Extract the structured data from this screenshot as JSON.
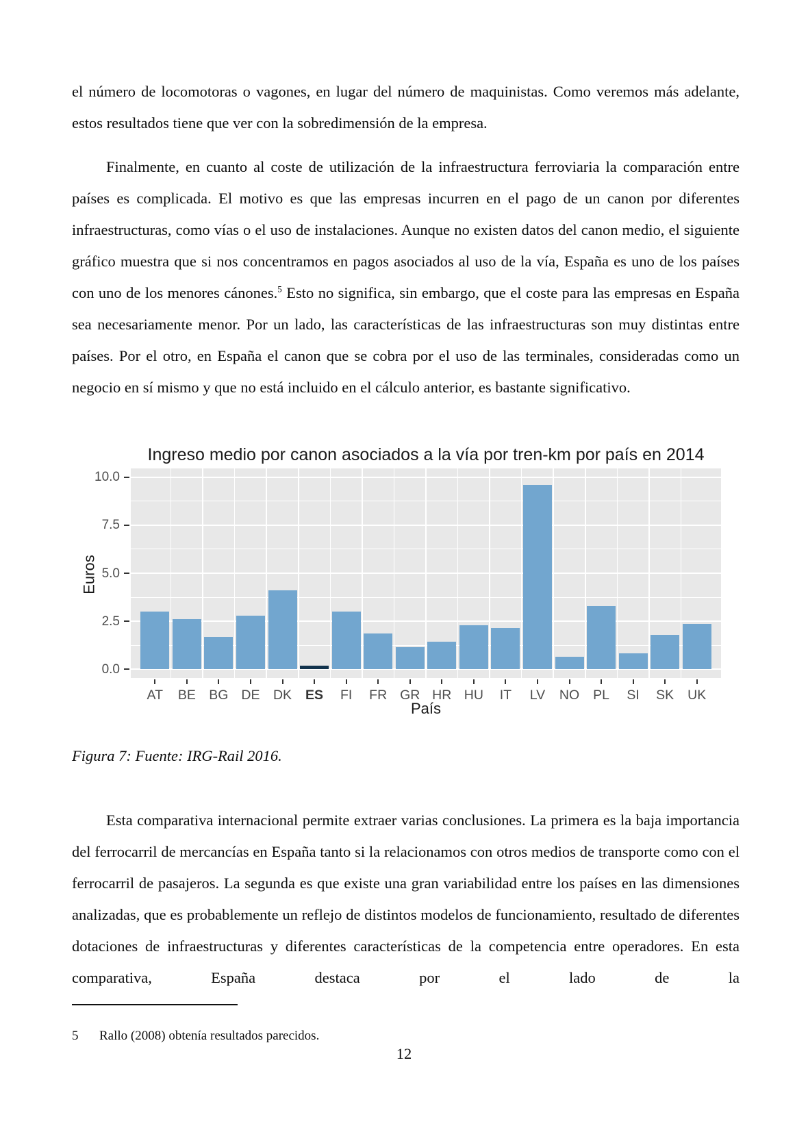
{
  "page": {
    "paragraph1": "el número de locomotoras o vagones, en lugar del número de maquinistas. Como veremos más adelante, estos resultados tiene que ver con la sobredimensión de la empresa.",
    "paragraph2_before_sup": "Finalmente, en cuanto al coste de utilización de la infraestructura ferroviaria la comparación entre países es complicada. El motivo es que las empresas incurren en el pago de un canon por diferentes infraestructuras, como vías o el uso de instalaciones. Aunque no existen datos del canon medio, el siguiente gráfico muestra que si nos concentramos en pagos asociados al uso de la vía, España es uno de los países con uno de los menores cánones.",
    "paragraph2_sup": "5",
    "paragraph2_after_sup": " Esto no significa, sin embargo, que el coste para las empresas en España sea necesariamente menor. Por un lado, las características de las infraestructuras son muy distintas entre países. Por el otro, en España el canon que se cobra por el uso de las terminales, consideradas como un negocio en sí mismo y que no está incluido en el cálculo anterior, es bastante significativo.",
    "figure_caption": "Figura 7: Fuente: IRG-Rail 2016.",
    "paragraph3": "Esta comparativa internacional permite extraer varias conclusiones. La primera es la baja importancia del ferrocarril de mercancías en España tanto si la relacionamos con otros medios de transporte como con el ferrocarril de pasajeros. La segunda es que existe una gran variabilidad entre los países en las dimensiones analizadas, que es probablemente un reflejo de distintos modelos de funcionamiento, resultado de diferentes dotaciones de infraestructuras y diferentes características de la competencia entre operadores. En esta comparativa, España destaca por el lado de la",
    "footnote_marker": "5",
    "footnote_text": "Rallo (2008) obtenía resultados parecidos.",
    "page_number": "12"
  },
  "chart_data": {
    "type": "bar",
    "title": "Ingreso medio por canon asociados a la vía por tren-km por país en 2014",
    "xlabel": "País",
    "ylabel": "Euros",
    "categories": [
      "AT",
      "BE",
      "BG",
      "DE",
      "DK",
      "ES",
      "FI",
      "FR",
      "GR",
      "HR",
      "HU",
      "IT",
      "LV",
      "NO",
      "PL",
      "SI",
      "SK",
      "UK"
    ],
    "values": [
      3.0,
      2.6,
      1.7,
      2.8,
      4.1,
      0.2,
      3.0,
      1.85,
      1.15,
      1.45,
      2.3,
      2.15,
      9.6,
      0.65,
      3.3,
      0.85,
      1.8,
      2.35
    ],
    "highlight_category": "ES",
    "ylim": [
      0,
      10
    ],
    "yticks": [
      0,
      2.5,
      5,
      7.5,
      10
    ],
    "ytick_labels": [
      "0.0",
      "2.5",
      "5.0",
      "7.5",
      "10.0"
    ],
    "grid": true,
    "legend_position": "none",
    "colors": {
      "bar": "#72a6cf",
      "highlight": "#12334d",
      "panel_bg": "#e8e8e8",
      "gridline": "#ffffff",
      "axis_text": "#4d4d4d",
      "tick_mark": "#333333",
      "title_text": "#1a1a1a"
    }
  }
}
